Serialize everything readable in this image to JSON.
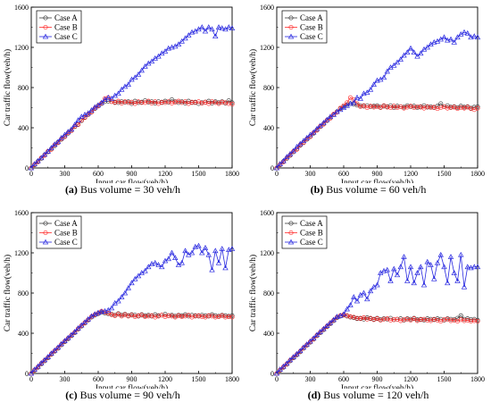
{
  "colors": {
    "case_a": "#3c3c3c",
    "case_b": "#ff2a2a",
    "case_c": "#2727e0"
  },
  "chart_data": [
    {
      "type": "line",
      "caption_label": "(a)",
      "caption_text": "Bus volume = 30 veh/h",
      "xlabel": "Input car flow(veh/h)",
      "ylabel": "Car traffic flow(veh/h)",
      "xlim": [
        0,
        1800
      ],
      "ylim": [
        0,
        1600
      ],
      "xticks": [
        0,
        300,
        600,
        900,
        1200,
        1500,
        1800
      ],
      "yticks": [
        0,
        400,
        800,
        1200,
        1600
      ],
      "legend": "top-left",
      "grid": false,
      "x": [
        0,
        30,
        60,
        90,
        120,
        150,
        180,
        210,
        240,
        270,
        300,
        330,
        360,
        390,
        420,
        450,
        480,
        510,
        540,
        570,
        600,
        630,
        660,
        690,
        720,
        750,
        780,
        810,
        840,
        870,
        900,
        930,
        960,
        990,
        1020,
        1050,
        1080,
        1110,
        1140,
        1170,
        1200,
        1230,
        1260,
        1290,
        1320,
        1350,
        1380,
        1410,
        1440,
        1470,
        1500,
        1530,
        1560,
        1590,
        1620,
        1650,
        1680,
        1710,
        1740,
        1770,
        1800
      ],
      "series": [
        {
          "name": "Case A",
          "marker": "circle",
          "values": [
            0,
            30,
            65,
            95,
            130,
            160,
            190,
            220,
            255,
            285,
            315,
            345,
            375,
            410,
            435,
            470,
            505,
            530,
            560,
            590,
            620,
            640,
            660,
            665,
            660,
            655,
            650,
            660,
            655,
            660,
            640,
            665,
            650,
            655,
            670,
            655,
            660,
            645,
            660,
            650,
            665,
            655,
            680,
            660,
            650,
            660,
            645,
            665,
            650,
            655,
            640,
            650,
            655,
            665,
            645,
            660,
            650,
            660,
            645,
            670,
            650
          ]
        },
        {
          "name": "Case B",
          "marker": "circle",
          "values": [
            0,
            35,
            60,
            100,
            125,
            165,
            185,
            230,
            250,
            290,
            310,
            350,
            370,
            415,
            430,
            475,
            500,
            535,
            555,
            595,
            615,
            645,
            690,
            700,
            660,
            650,
            665,
            645,
            660,
            650,
            655,
            640,
            660,
            650,
            650,
            665,
            645,
            660,
            640,
            655,
            650,
            660,
            645,
            655,
            665,
            650,
            660,
            640,
            655,
            650,
            660,
            645,
            655,
            640,
            660,
            650,
            640,
            655,
            650,
            640,
            635
          ]
        },
        {
          "name": "Case C",
          "marker": "triangle",
          "values": [
            0,
            40,
            70,
            100,
            135,
            165,
            200,
            235,
            260,
            300,
            330,
            360,
            385,
            430,
            475,
            510,
            530,
            545,
            575,
            605,
            625,
            650,
            680,
            700,
            690,
            720,
            740,
            780,
            810,
            830,
            880,
            900,
            930,
            970,
            1010,
            1040,
            1060,
            1090,
            1110,
            1140,
            1160,
            1190,
            1200,
            1210,
            1230,
            1260,
            1290,
            1320,
            1350,
            1360,
            1380,
            1400,
            1360,
            1400,
            1380,
            1310,
            1400,
            1390,
            1380,
            1400,
            1390
          ]
        }
      ]
    },
    {
      "type": "line",
      "caption_label": "(b)",
      "caption_text": "Bus volume = 60 veh/h",
      "xlabel": "Input car flow(veh/h)",
      "ylabel": "Car traffic flow(veh/h)",
      "xlim": [
        0,
        1800
      ],
      "ylim": [
        0,
        1600
      ],
      "xticks": [
        0,
        300,
        600,
        900,
        1200,
        1500,
        1800
      ],
      "yticks": [
        0,
        400,
        800,
        1200,
        1600
      ],
      "legend": "top-left",
      "grid": false,
      "x": [
        0,
        30,
        60,
        90,
        120,
        150,
        180,
        210,
        240,
        270,
        300,
        330,
        360,
        390,
        420,
        450,
        480,
        510,
        540,
        570,
        600,
        630,
        660,
        690,
        720,
        750,
        780,
        810,
        840,
        870,
        900,
        930,
        960,
        990,
        1020,
        1050,
        1080,
        1110,
        1140,
        1170,
        1200,
        1230,
        1260,
        1290,
        1320,
        1350,
        1380,
        1410,
        1440,
        1470,
        1500,
        1530,
        1560,
        1590,
        1620,
        1650,
        1680,
        1710,
        1740,
        1770,
        1800
      ],
      "series": [
        {
          "name": "Case A",
          "marker": "circle",
          "values": [
            0,
            30,
            65,
            95,
            125,
            160,
            190,
            225,
            255,
            285,
            315,
            345,
            380,
            410,
            440,
            470,
            500,
            530,
            560,
            590,
            610,
            630,
            640,
            635,
            625,
            620,
            615,
            620,
            610,
            615,
            620,
            605,
            615,
            610,
            620,
            600,
            615,
            610,
            605,
            620,
            610,
            615,
            600,
            610,
            620,
            605,
            610,
            600,
            615,
            640,
            610,
            620,
            605,
            610,
            600,
            615,
            605,
            610,
            595,
            605,
            610
          ]
        },
        {
          "name": "Case B",
          "marker": "circle",
          "values": [
            0,
            35,
            60,
            100,
            130,
            165,
            185,
            230,
            250,
            290,
            310,
            350,
            375,
            415,
            435,
            475,
            495,
            535,
            555,
            595,
            620,
            650,
            700,
            680,
            640,
            610,
            620,
            600,
            615,
            605,
            610,
            600,
            620,
            605,
            600,
            615,
            600,
            610,
            595,
            605,
            615,
            600,
            610,
            605,
            595,
            610,
            600,
            605,
            590,
            600,
            610,
            595,
            600,
            605,
            590,
            600,
            595,
            605,
            590,
            580,
            595
          ]
        },
        {
          "name": "Case C",
          "marker": "triangle",
          "values": [
            0,
            40,
            70,
            110,
            140,
            170,
            210,
            240,
            270,
            300,
            330,
            355,
            390,
            420,
            450,
            480,
            510,
            530,
            560,
            580,
            600,
            620,
            640,
            650,
            700,
            690,
            740,
            750,
            780,
            830,
            870,
            880,
            900,
            960,
            1000,
            1020,
            1050,
            1080,
            1120,
            1150,
            1190,
            1150,
            1110,
            1140,
            1180,
            1200,
            1230,
            1250,
            1260,
            1280,
            1300,
            1270,
            1280,
            1250,
            1300,
            1330,
            1350,
            1340,
            1300,
            1310,
            1300
          ]
        }
      ]
    },
    {
      "type": "line",
      "caption_label": "(c)",
      "caption_text": "Bus volume = 90 veh/h",
      "xlabel": "Input car flow(veh/h)",
      "ylabel": "Car traffic flow(veh/h)",
      "xlim": [
        0,
        1800
      ],
      "ylim": [
        0,
        1600
      ],
      "xticks": [
        0,
        300,
        600,
        900,
        1200,
        1500,
        1800
      ],
      "yticks": [
        0,
        400,
        800,
        1200,
        1600
      ],
      "legend": "top-left",
      "grid": false,
      "x": [
        0,
        30,
        60,
        90,
        120,
        150,
        180,
        210,
        240,
        270,
        300,
        330,
        360,
        390,
        420,
        450,
        480,
        510,
        540,
        570,
        600,
        630,
        660,
        690,
        720,
        750,
        780,
        810,
        840,
        870,
        900,
        930,
        960,
        990,
        1020,
        1050,
        1080,
        1110,
        1140,
        1170,
        1200,
        1230,
        1260,
        1290,
        1320,
        1350,
        1380,
        1410,
        1440,
        1470,
        1500,
        1530,
        1560,
        1590,
        1620,
        1650,
        1680,
        1710,
        1740,
        1770,
        1800
      ],
      "series": [
        {
          "name": "Case A",
          "marker": "circle",
          "values": [
            0,
            30,
            60,
            95,
            125,
            155,
            190,
            220,
            250,
            285,
            315,
            345,
            375,
            405,
            440,
            470,
            500,
            530,
            560,
            580,
            595,
            610,
            600,
            595,
            590,
            580,
            595,
            580,
            590,
            575,
            585,
            580,
            570,
            585,
            575,
            580,
            570,
            585,
            575,
            580,
            590,
            575,
            580,
            570,
            580,
            575,
            585,
            570,
            580,
            575,
            570,
            580,
            575,
            570,
            585,
            575,
            570,
            580,
            575,
            570,
            575
          ]
        },
        {
          "name": "Case B",
          "marker": "circle",
          "values": [
            0,
            35,
            65,
            100,
            130,
            160,
            195,
            225,
            255,
            290,
            320,
            350,
            380,
            410,
            445,
            475,
            505,
            535,
            565,
            585,
            600,
            620,
            610,
            600,
            585,
            575,
            590,
            570,
            585,
            570,
            580,
            565,
            575,
            580,
            565,
            570,
            575,
            560,
            570,
            580,
            565,
            575,
            570,
            560,
            575,
            565,
            570,
            580,
            560,
            570,
            575,
            565,
            560,
            575,
            570,
            560,
            565,
            575,
            560,
            565,
            560
          ]
        },
        {
          "name": "Case C",
          "marker": "triangle",
          "values": [
            0,
            40,
            70,
            105,
            135,
            165,
            200,
            230,
            260,
            295,
            325,
            355,
            385,
            415,
            450,
            480,
            510,
            540,
            570,
            590,
            605,
            615,
            620,
            630,
            650,
            700,
            720,
            760,
            800,
            850,
            900,
            940,
            970,
            1000,
            1020,
            1060,
            1090,
            1100,
            1080,
            1060,
            1120,
            1140,
            1200,
            1150,
            1080,
            1100,
            1220,
            1180,
            1200,
            1260,
            1270,
            1200,
            1250,
            1180,
            1030,
            1220,
            1100,
            1240,
            1050,
            1230,
            1240
          ]
        }
      ]
    },
    {
      "type": "line",
      "caption_label": "(d)",
      "caption_text": "Bus volume = 120 veh/h",
      "xlabel": "Input car flow(veh/h)",
      "ylabel": "Car traffic flow(veh/h)",
      "xlim": [
        0,
        1800
      ],
      "ylim": [
        0,
        1600
      ],
      "xticks": [
        0,
        300,
        600,
        900,
        1200,
        1500,
        1800
      ],
      "yticks": [
        0,
        400,
        800,
        1200,
        1600
      ],
      "legend": "top-left",
      "grid": false,
      "x": [
        0,
        30,
        60,
        90,
        120,
        150,
        180,
        210,
        240,
        270,
        300,
        330,
        360,
        390,
        420,
        450,
        480,
        510,
        540,
        570,
        600,
        630,
        660,
        690,
        720,
        750,
        780,
        810,
        840,
        870,
        900,
        930,
        960,
        990,
        1020,
        1050,
        1080,
        1110,
        1140,
        1170,
        1200,
        1230,
        1260,
        1290,
        1320,
        1350,
        1380,
        1410,
        1440,
        1470,
        1500,
        1530,
        1560,
        1590,
        1620,
        1650,
        1680,
        1710,
        1740,
        1770,
        1800
      ],
      "series": [
        {
          "name": "Case A",
          "marker": "circle",
          "values": [
            0,
            30,
            60,
            90,
            125,
            155,
            185,
            215,
            250,
            280,
            310,
            340,
            375,
            405,
            435,
            465,
            495,
            525,
            555,
            570,
            580,
            570,
            560,
            555,
            545,
            550,
            540,
            555,
            545,
            540,
            550,
            535,
            545,
            540,
            550,
            535,
            540,
            545,
            530,
            545,
            540,
            550,
            535,
            540,
            530,
            545,
            540,
            535,
            545,
            540,
            530,
            545,
            540,
            535,
            550,
            575,
            540,
            545,
            535,
            540,
            530
          ]
        },
        {
          "name": "Case B",
          "marker": "circle",
          "values": [
            0,
            35,
            65,
            95,
            130,
            160,
            190,
            220,
            255,
            285,
            315,
            345,
            380,
            410,
            440,
            470,
            500,
            530,
            560,
            575,
            585,
            575,
            565,
            560,
            550,
            545,
            555,
            540,
            550,
            535,
            545,
            530,
            540,
            545,
            530,
            535,
            540,
            525,
            535,
            540,
            530,
            545,
            525,
            535,
            540,
            530,
            525,
            540,
            530,
            520,
            535,
            540,
            525,
            530,
            520,
            535,
            525,
            530,
            520,
            525,
            520
          ]
        },
        {
          "name": "Case C",
          "marker": "triangle",
          "values": [
            0,
            40,
            70,
            100,
            135,
            165,
            195,
            225,
            260,
            290,
            320,
            350,
            385,
            415,
            445,
            475,
            505,
            535,
            565,
            575,
            590,
            640,
            680,
            760,
            720,
            780,
            800,
            740,
            820,
            860,
            880,
            1000,
            1020,
            1030,
            920,
            1040,
            980,
            1060,
            1160,
            920,
            1060,
            900,
            1000,
            1060,
            880,
            1110,
            1080,
            940,
            1100,
            1180,
            1060,
            900,
            1160,
            1000,
            920,
            1180,
            860,
            1060,
            1050,
            1060,
            1060
          ]
        }
      ]
    }
  ]
}
